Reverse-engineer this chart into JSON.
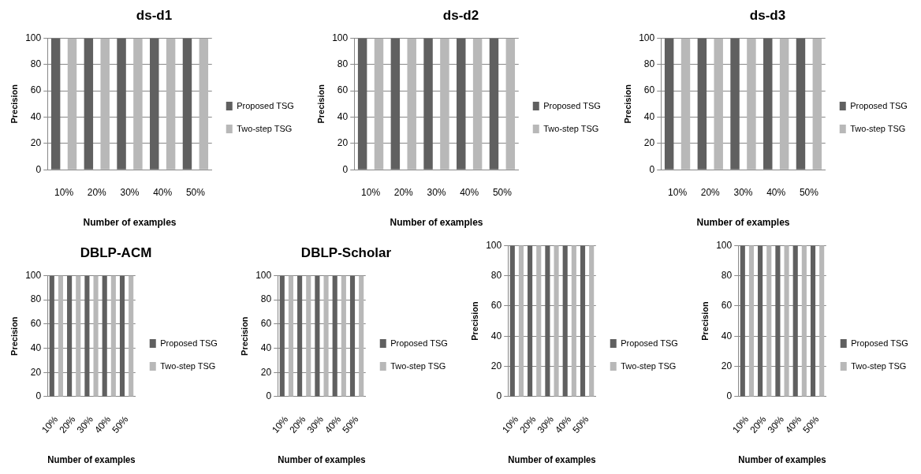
{
  "chart_data": [
    {
      "type": "bar",
      "title": "ds-d1",
      "xlabel": "Number of examples",
      "ylabel": "Precision",
      "categories": [
        "10%",
        "20%",
        "30%",
        "40%",
        "50%"
      ],
      "series": [
        {
          "name": "Proposed TSG",
          "color": "#606060",
          "values": [
            100,
            100,
            100,
            100,
            100
          ]
        },
        {
          "name": "Two-step TSG",
          "color": "#b8b8b8",
          "values": [
            100,
            100,
            100,
            100,
            100
          ]
        }
      ],
      "ylim": [
        0,
        100
      ],
      "yticks": [
        0,
        20,
        40,
        60,
        80,
        100
      ],
      "grid": "y",
      "legend": "right"
    },
    {
      "type": "bar",
      "title": "ds-d2",
      "xlabel": "Number of examples",
      "ylabel": "Precision",
      "categories": [
        "10%",
        "20%",
        "30%",
        "40%",
        "50%"
      ],
      "series": [
        {
          "name": "Proposed TSG",
          "color": "#606060",
          "values": [
            100,
            100,
            100,
            100,
            100
          ]
        },
        {
          "name": "Two-step TSG",
          "color": "#b8b8b8",
          "values": [
            100,
            100,
            100,
            100,
            100
          ]
        }
      ],
      "ylim": [
        0,
        100
      ],
      "yticks": [
        0,
        20,
        40,
        60,
        80,
        100
      ],
      "grid": "y",
      "legend": "right"
    },
    {
      "type": "bar",
      "title": "ds-d3",
      "xlabel": "Number of examples",
      "ylabel": "Precision",
      "categories": [
        "10%",
        "20%",
        "30%",
        "40%",
        "50%"
      ],
      "series": [
        {
          "name": "Proposed TSG",
          "color": "#606060",
          "values": [
            100,
            100,
            100,
            100,
            100
          ]
        },
        {
          "name": "Two-step TSG",
          "color": "#b8b8b8",
          "values": [
            100,
            100,
            100,
            100,
            100
          ]
        }
      ],
      "ylim": [
        0,
        100
      ],
      "yticks": [
        0,
        20,
        40,
        60,
        80,
        100
      ],
      "grid": "y",
      "legend": "right"
    },
    {
      "type": "bar",
      "title": "DBLP-ACM",
      "xlabel": "Number of examples",
      "ylabel": "Precision",
      "categories": [
        "10%",
        "20%",
        "30%",
        "40%",
        "50%"
      ],
      "series": [
        {
          "name": "Proposed TSG",
          "color": "#606060",
          "values": [
            100,
            100,
            100,
            100,
            100
          ]
        },
        {
          "name": "Two-step TSG",
          "color": "#b8b8b8",
          "values": [
            100,
            100,
            100,
            100,
            100
          ]
        }
      ],
      "ylim": [
        0,
        100
      ],
      "yticks": [
        0,
        20,
        40,
        60,
        80,
        100
      ],
      "grid": "y",
      "legend": "right"
    },
    {
      "type": "bar",
      "title": "DBLP-Scholar",
      "xlabel": "Number of examples",
      "ylabel": "Precision",
      "categories": [
        "10%",
        "20%",
        "30%",
        "40%",
        "50%"
      ],
      "series": [
        {
          "name": "Proposed TSG",
          "color": "#606060",
          "values": [
            100,
            100,
            100,
            100,
            100
          ]
        },
        {
          "name": "Two-step TSG",
          "color": "#b8b8b8",
          "values": [
            100,
            100,
            100,
            100,
            100
          ]
        }
      ],
      "ylim": [
        0,
        100
      ],
      "yticks": [
        0,
        20,
        40,
        60,
        80,
        100
      ],
      "grid": "y",
      "legend": "right"
    },
    {
      "type": "bar",
      "xlabel": "Number of examples",
      "ylabel": "Precision",
      "categories": [
        "10%",
        "20%",
        "30%",
        "40%",
        "50%"
      ],
      "series": [
        {
          "name": "Proposed TSG",
          "color": "#606060",
          "values": [
            100,
            100,
            100,
            100,
            100
          ]
        },
        {
          "name": "Two-step TSG",
          "color": "#b8b8b8",
          "values": [
            100,
            100,
            100,
            100,
            100
          ]
        }
      ],
      "ylim": [
        0,
        100
      ],
      "yticks": [
        0,
        20,
        40,
        60,
        80,
        100
      ],
      "grid": "y",
      "legend": "right"
    },
    {
      "type": "bar",
      "xlabel": "Number of examples",
      "ylabel": "Precision",
      "categories": [
        "10%",
        "20%",
        "30%",
        "40%",
        "50%"
      ],
      "series": [
        {
          "name": "Proposed TSG",
          "color": "#606060",
          "values": [
            100,
            100,
            100,
            100,
            100
          ]
        },
        {
          "name": "Two-step TSG",
          "color": "#b8b8b8",
          "values": [
            100,
            100,
            100,
            100,
            100
          ]
        }
      ],
      "ylim": [
        0,
        100
      ],
      "yticks": [
        0,
        20,
        40,
        60,
        80,
        100
      ],
      "grid": "y",
      "legend": "right"
    }
  ]
}
